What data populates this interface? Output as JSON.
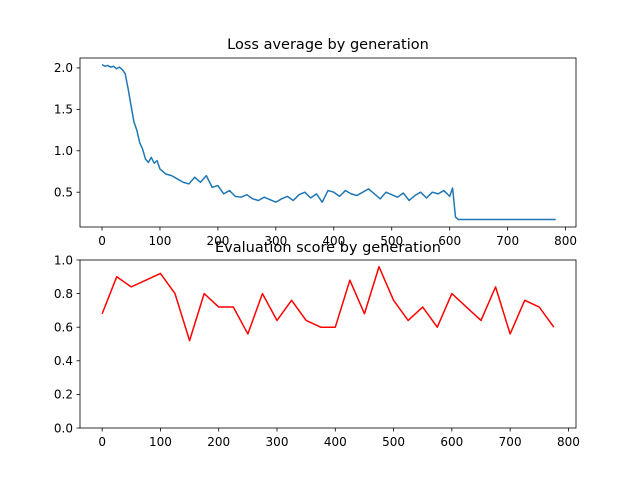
{
  "chart_data": [
    {
      "type": "line",
      "title": "Loss average by generation",
      "xlabel": "",
      "ylabel": "",
      "xlim": [
        -38,
        818
      ],
      "ylim": [
        0.08,
        2.12
      ],
      "xticks": [
        "0",
        "100",
        "200",
        "300",
        "400",
        "500",
        "600",
        "700",
        "800"
      ],
      "yticks": [
        "0.5",
        "1.0",
        "1.5",
        "2.0"
      ],
      "grid": false,
      "color": "#1f77b4",
      "series": [
        {
          "x": [
            0,
            5,
            10,
            15,
            20,
            25,
            30,
            35,
            40,
            45,
            50,
            55,
            60,
            65,
            70,
            75,
            80,
            85,
            90,
            95,
            100,
            110,
            120,
            130,
            140,
            150,
            160,
            170,
            180,
            190,
            200,
            210,
            220,
            230,
            240,
            250,
            260,
            270,
            280,
            290,
            300,
            310,
            320,
            330,
            340,
            350,
            360,
            370,
            380,
            390,
            400,
            410,
            420,
            430,
            440,
            450,
            460,
            470,
            480,
            490,
            500,
            510,
            520,
            530,
            540,
            550,
            560,
            570,
            580,
            590,
            600,
            605,
            610,
            615,
            620,
            700,
            783
          ],
          "y": [
            2.04,
            2.02,
            2.03,
            2.01,
            2.02,
            1.99,
            2.01,
            1.98,
            1.93,
            1.75,
            1.55,
            1.35,
            1.25,
            1.1,
            1.02,
            0.9,
            0.86,
            0.92,
            0.85,
            0.88,
            0.78,
            0.72,
            0.7,
            0.66,
            0.62,
            0.6,
            0.68,
            0.62,
            0.7,
            0.56,
            0.58,
            0.48,
            0.52,
            0.45,
            0.44,
            0.47,
            0.42,
            0.4,
            0.44,
            0.41,
            0.38,
            0.42,
            0.45,
            0.4,
            0.47,
            0.5,
            0.43,
            0.48,
            0.38,
            0.52,
            0.5,
            0.45,
            0.52,
            0.48,
            0.46,
            0.5,
            0.54,
            0.48,
            0.42,
            0.5,
            0.47,
            0.44,
            0.49,
            0.4,
            0.46,
            0.5,
            0.43,
            0.5,
            0.48,
            0.52,
            0.45,
            0.55,
            0.2,
            0.17,
            0.17,
            0.17,
            0.17
          ]
        }
      ]
    },
    {
      "type": "line",
      "title": "Evaluation score by generation",
      "xlabel": "",
      "ylabel": "",
      "xlim": [
        -38,
        813
      ],
      "ylim": [
        0.0,
        1.0
      ],
      "xticks": [
        "0",
        "100",
        "200",
        "300",
        "400",
        "500",
        "600",
        "700",
        "800"
      ],
      "yticks": [
        "0.0",
        "0.2",
        "0.4",
        "0.6",
        "0.8",
        "1.0"
      ],
      "grid": false,
      "color": "#ff0000",
      "series": [
        {
          "x": [
            0,
            25,
            50,
            75,
            100,
            125,
            150,
            175,
            200,
            225,
            250,
            275,
            300,
            325,
            350,
            375,
            400,
            425,
            450,
            475,
            500,
            525,
            550,
            575,
            600,
            625,
            650,
            675,
            700,
            725,
            750,
            775
          ],
          "y": [
            0.68,
            0.9,
            0.84,
            0.88,
            0.92,
            0.8,
            0.52,
            0.8,
            0.72,
            0.72,
            0.56,
            0.8,
            0.64,
            0.76,
            0.64,
            0.6,
            0.6,
            0.88,
            0.68,
            0.96,
            0.76,
            0.64,
            0.72,
            0.6,
            0.8,
            0.72,
            0.64,
            0.84,
            0.56,
            0.76,
            0.72,
            0.6
          ]
        }
      ]
    }
  ]
}
